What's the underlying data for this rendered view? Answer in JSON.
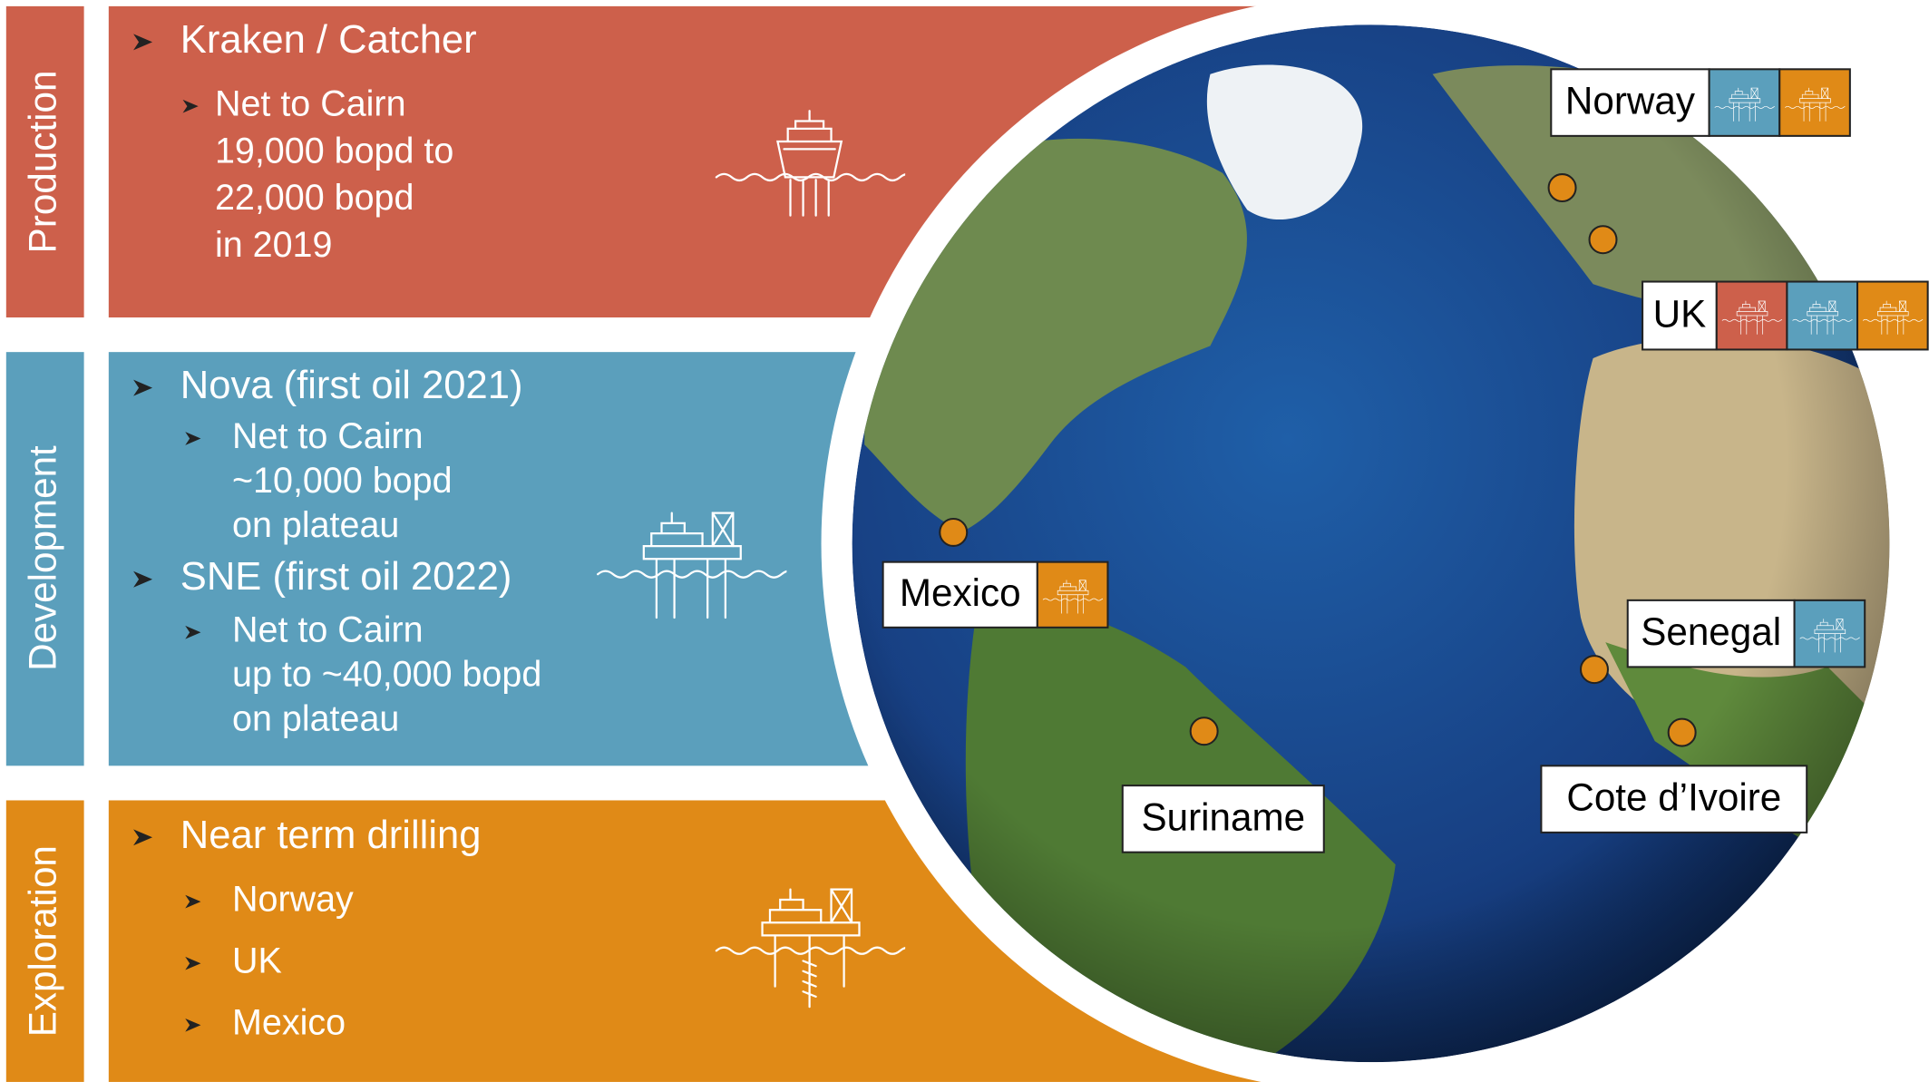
{
  "sections": [
    {
      "label": "Production",
      "items": [
        {
          "level": 1,
          "lines": [
            "Kraken / Catcher"
          ]
        },
        {
          "level": 2,
          "lines": [
            "Net to Cairn",
            "19,000 bopd to",
            "22,000 bopd",
            "in 2019"
          ]
        }
      ]
    },
    {
      "label": "Development",
      "items": [
        {
          "level": 1,
          "lines": [
            "Nova (first oil 2021)"
          ]
        },
        {
          "level": 2,
          "lines": [
            "Net to Cairn",
            "~10,000 bopd",
            "on plateau"
          ]
        },
        {
          "level": 1,
          "lines": [
            "SNE (first oil 2022)"
          ]
        },
        {
          "level": 2,
          "lines": [
            "Net to Cairn",
            "up to ~40,000 bopd",
            "on plateau"
          ]
        }
      ]
    },
    {
      "label": "Exploration",
      "items": [
        {
          "level": 1,
          "lines": [
            "Near term drilling"
          ]
        },
        {
          "level": 2,
          "lines": [
            "Norway"
          ]
        },
        {
          "level": 2,
          "lines": [
            "UK"
          ]
        },
        {
          "level": 2,
          "lines": [
            "Mexico"
          ]
        }
      ]
    }
  ],
  "locations": [
    {
      "name": "Norway"
    },
    {
      "name": "UK"
    },
    {
      "name": "Mexico"
    },
    {
      "name": "Senegal"
    },
    {
      "name": "Suriname"
    },
    {
      "name": "Cote d’Ivoire"
    }
  ]
}
